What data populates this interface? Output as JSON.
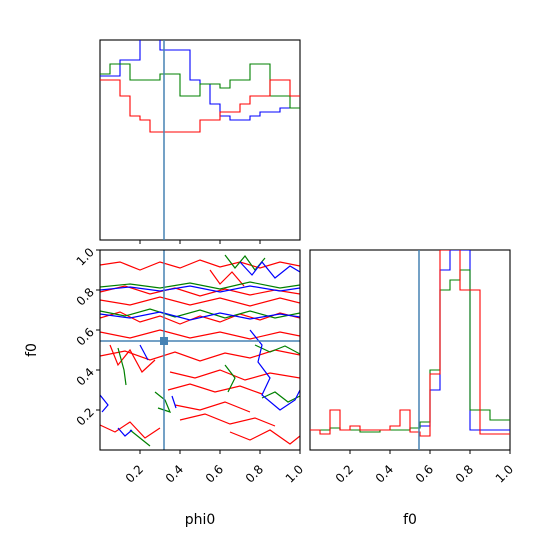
{
  "chart_data": {
    "type": "corner",
    "axis_labels": {
      "x_bottom_left": "phi0",
      "x_bottom_right": "f0",
      "y_left": "f0"
    },
    "colors": {
      "blue": "#0000ff",
      "green": "#008000",
      "red": "#ff0000",
      "truth": "#4682b4"
    },
    "ticks": {
      "labels": [
        "0.2",
        "0.4",
        "0.6",
        "0.8",
        "1.0"
      ],
      "values": [
        0.2,
        0.4,
        0.6,
        0.8,
        1.0
      ]
    },
    "ranges": {
      "phi0": [
        0,
        1
      ],
      "f0": [
        0,
        1
      ]
    },
    "truth": {
      "phi0": 0.32,
      "f0": 0.545
    },
    "hist_phi0": {
      "bins": 20,
      "series": [
        {
          "color": "blue",
          "values": [
            0.82,
            0.82,
            0.9,
            0.9,
            1.05,
            1.05,
            0.95,
            0.95,
            0.95,
            0.8,
            0.78,
            0.68,
            0.62,
            0.6,
            0.6,
            0.62,
            0.64,
            0.64,
            0.66,
            0.66
          ]
        },
        {
          "color": "green",
          "values": [
            0.83,
            0.88,
            0.88,
            0.8,
            0.8,
            0.8,
            0.83,
            0.83,
            0.72,
            0.72,
            0.78,
            0.78,
            0.76,
            0.8,
            0.8,
            0.88,
            0.88,
            0.72,
            0.72,
            0.66
          ]
        },
        {
          "color": "red",
          "values": [
            0.8,
            0.8,
            0.72,
            0.62,
            0.6,
            0.54,
            0.54,
            0.54,
            0.54,
            0.54,
            0.6,
            0.6,
            0.64,
            0.64,
            0.68,
            0.72,
            0.72,
            0.8,
            0.8,
            0.72
          ]
        }
      ],
      "ymax": 1.0
    },
    "hist_f0": {
      "bins": 20,
      "series": [
        {
          "color": "blue",
          "values": [
            0.1,
            0.1,
            0.11,
            0.1,
            0.1,
            0.1,
            0.1,
            0.1,
            0.1,
            0.1,
            0.11,
            0.12,
            0.3,
            0.9,
            1.0,
            1.0,
            0.1,
            0.1,
            0.1,
            0.1
          ]
        },
        {
          "color": "green",
          "values": [
            0.1,
            0.1,
            0.11,
            0.1,
            0.1,
            0.09,
            0.09,
            0.1,
            0.1,
            0.1,
            0.11,
            0.14,
            0.4,
            0.8,
            0.85,
            0.9,
            0.2,
            0.2,
            0.15,
            0.15
          ]
        },
        {
          "color": "red",
          "values": [
            0.1,
            0.08,
            0.2,
            0.1,
            0.12,
            0.1,
            0.1,
            0.1,
            0.12,
            0.2,
            0.09,
            0.07,
            0.38,
            1.0,
            1.2,
            0.8,
            0.8,
            0.08,
            0.08,
            0.08
          ]
        }
      ],
      "ymax": 1.0
    }
  }
}
